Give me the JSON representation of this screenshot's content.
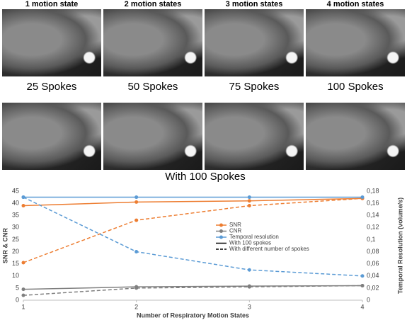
{
  "figure": {
    "top_labels": [
      "1 motion state",
      "2 motion states",
      "3 motion states",
      "4 motion states"
    ],
    "bottom_labels": [
      "25 Spokes",
      "50 Spokes",
      "75 Spokes",
      "100 Spokes"
    ],
    "bottom_caption": "With 100 Spokes"
  },
  "chart_data": {
    "type": "line",
    "x": [
      1,
      2,
      3,
      4
    ],
    "xlim": [
      1,
      4
    ],
    "xticks": [
      1,
      2,
      3,
      4
    ],
    "xlabel": "Number of Respiratory Motion States",
    "ylabel": "SNR & CNR",
    "y2label": "Temporal Resolution (volume/s)",
    "ylim": [
      0,
      45
    ],
    "yticks": [
      0,
      5,
      10,
      15,
      20,
      25,
      30,
      35,
      40,
      45
    ],
    "y2lim": [
      0,
      0.18
    ],
    "y2ticks": [
      0,
      {
        "value": 0.02,
        "label": "0,02"
      },
      {
        "value": 0.04,
        "label": "0,04"
      },
      {
        "value": 0.06,
        "label": "0,06"
      },
      {
        "value": 0.08,
        "label": "0,08"
      },
      {
        "value": 0.1,
        "label": "0,1"
      },
      {
        "value": 0.12,
        "label": "0,12"
      },
      {
        "value": 0.14,
        "label": "0,14"
      },
      {
        "value": 0.16,
        "label": "0,16"
      },
      {
        "value": 0.18,
        "label": "0,18"
      }
    ],
    "line_styles": [
      "With 100 spokes",
      "With different number of spokes"
    ],
    "series": [
      {
        "name": "SNR",
        "color": "#ed7d31",
        "values": [
          39,
          40.5,
          41,
          42
        ],
        "values_varied": [
          15.5,
          33,
          39,
          42
        ]
      },
      {
        "name": "CNR",
        "color": "#7f7f7f",
        "values": [
          4.5,
          5.5,
          5.8,
          6
        ],
        "values_varied": [
          2,
          5,
          5.5,
          6
        ]
      },
      {
        "name": "Temporal resolution",
        "color": "#5b9bd5",
        "axis": "y2",
        "values": [
          0.17,
          0.17,
          0.17,
          0.17
        ],
        "values_varied": [
          0.17,
          0.08,
          0.05,
          0.04
        ]
      }
    ]
  }
}
